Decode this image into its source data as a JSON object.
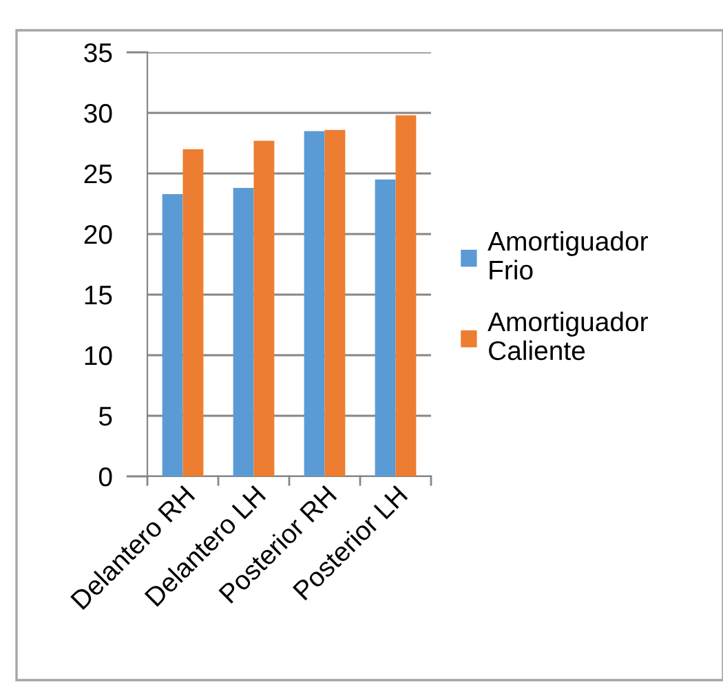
{
  "chart_data": {
    "type": "bar",
    "categories": [
      "Delantero RH",
      "Delantero LH",
      "Posterior RH",
      "Posterior LH"
    ],
    "series": [
      {
        "name": "Amortiguador Frio",
        "color": "#5b9bd5",
        "values": [
          23.3,
          23.8,
          28.5,
          24.5
        ]
      },
      {
        "name": "Amortiguador Caliente",
        "color": "#ed7d31",
        "values": [
          27.0,
          27.7,
          28.6,
          29.8
        ]
      }
    ],
    "ylim": [
      0,
      35
    ],
    "yticks": [
      0,
      5,
      10,
      15,
      20,
      25,
      30,
      35
    ],
    "grid": "y",
    "legend": "right"
  }
}
